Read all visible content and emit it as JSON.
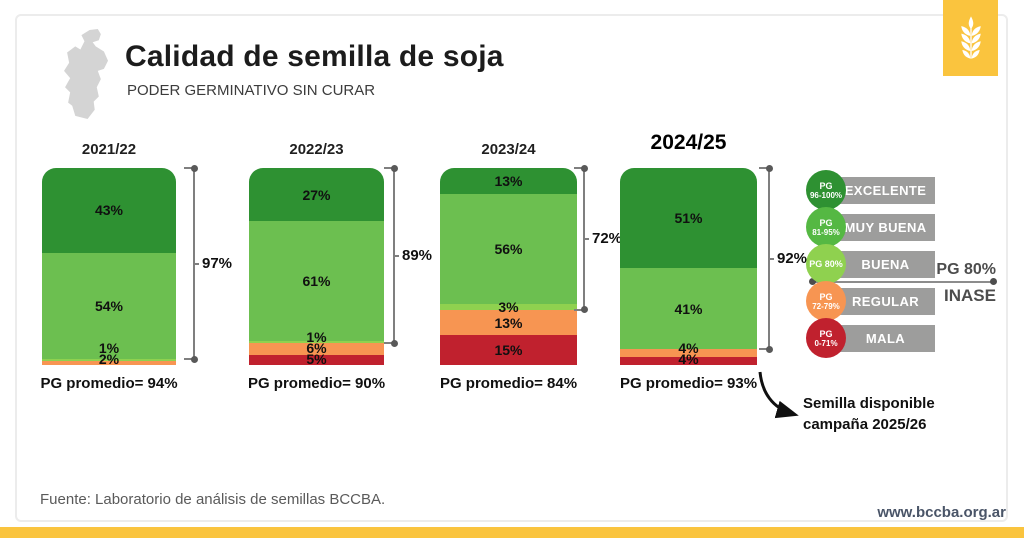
{
  "header": {
    "title": "Calidad de semilla de soja",
    "subtitle": "PODER GERMINATIVO SIN CURAR"
  },
  "branding": {
    "website": "www.bccba.org.ar",
    "accent_yellow": "#FAC43E",
    "icons": {
      "logo": "wheat-icon",
      "map": "cordoba-province-map"
    }
  },
  "chart_data": {
    "type": "bar",
    "stacked": true,
    "unit": "percent",
    "ylim": [
      0,
      100
    ],
    "title": "Calidad de semilla de soja",
    "subtitle": "PODER GERMINATIVO SIN CURAR",
    "categories": [
      "2021/22",
      "2022/23",
      "2023/24",
      "2024/25"
    ],
    "series": [
      {
        "name": "EXCELENTE PG 96-100%",
        "color": "#2E9132",
        "values": [
          43,
          27,
          13,
          51
        ]
      },
      {
        "name": "MUY BUENA PG 81-95%",
        "color": "#6CBF50",
        "values": [
          54,
          61,
          56,
          41
        ]
      },
      {
        "name": "BUENA PG 80%",
        "color": "#8FD14F",
        "values": [
          1,
          1,
          3,
          0
        ]
      },
      {
        "name": "REGULAR PG 72-79%",
        "color": "#F79552",
        "values": [
          2,
          6,
          13,
          4
        ]
      },
      {
        "name": "MALA PG 0-71%",
        "color": "#C0212E",
        "values": [
          0,
          5,
          15,
          4
        ]
      }
    ],
    "brackets": [
      97,
      89,
      72,
      92
    ],
    "averages": [
      "PG promedio= 94%",
      "PG promedio= 90%",
      "PG promedio= 84%",
      "PG promedio= 93%"
    ],
    "bracket_color": "#7f7f7f"
  },
  "legend": {
    "chip_color": "#9D9D9C",
    "items": [
      {
        "circle_line1": "PG",
        "circle_line2": "96-100%",
        "label": "EXCELENTE",
        "color": "#2E9132"
      },
      {
        "circle_line1": "PG",
        "circle_line2": "81-95%",
        "label": "MUY BUENA",
        "color": "#55B843"
      },
      {
        "circle_line1": "PG 80%",
        "circle_line2": "",
        "label": "BUENA",
        "color": "#8FD14F"
      },
      {
        "circle_line1": "PG",
        "circle_line2": "72-79%",
        "label": "REGULAR",
        "color": "#F79552"
      },
      {
        "circle_line1": "PG",
        "circle_line2": "0-71%",
        "label": "MALA",
        "color": "#C0212E"
      }
    ]
  },
  "inase": {
    "label_top": "PG 80%",
    "label_bottom": "INASE"
  },
  "annotation": {
    "line1": "Semilla disponible",
    "line2": "campaña 2025/26"
  },
  "source": {
    "text": "Fuente: Laboratorio de análisis de semillas BCCBA."
  }
}
